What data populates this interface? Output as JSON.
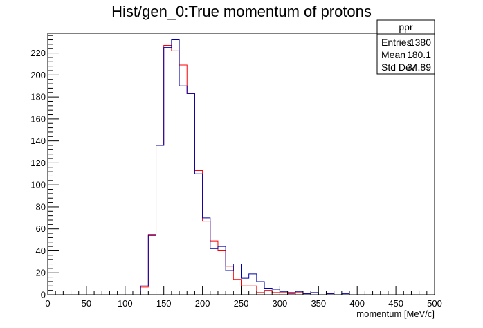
{
  "chart_data": {
    "type": "histogram",
    "title": "Hist/gen_0:True momentum of protons",
    "xlabel": "momentum [MeV/c]",
    "ylabel": "",
    "xlim": [
      0,
      500
    ],
    "ylim": [
      0,
      238
    ],
    "grid": false,
    "bin_width": 10,
    "x_ticks": [
      "0",
      "50",
      "100",
      "150",
      "200",
      "250",
      "300",
      "350",
      "400",
      "450",
      "500"
    ],
    "y_ticks": [
      "0",
      "20",
      "40",
      "60",
      "80",
      "100",
      "120",
      "140",
      "160",
      "180",
      "200",
      "220"
    ],
    "series": [
      {
        "color": "#ff0000",
        "values": [
          0,
          0,
          0,
          0,
          0,
          0,
          0,
          0,
          0,
          0,
          0,
          0,
          7,
          55,
          136,
          227,
          222,
          209,
          183,
          113,
          67,
          49,
          40,
          26,
          14,
          8,
          8,
          2,
          4,
          2,
          2,
          1,
          2,
          1,
          0,
          0,
          1,
          0,
          0,
          0,
          0,
          0,
          0,
          0,
          0,
          0,
          0,
          0,
          0,
          0
        ]
      },
      {
        "color": "#0000aa",
        "values": [
          0,
          0,
          0,
          0,
          0,
          0,
          0,
          0,
          0,
          0,
          0,
          0,
          8,
          54,
          136,
          225,
          232,
          190,
          183,
          110,
          70,
          42,
          44,
          22,
          28,
          15,
          19,
          12,
          6,
          5,
          3,
          2,
          3,
          1,
          2,
          0,
          1,
          0,
          1,
          0,
          0,
          0,
          0,
          0,
          0,
          0,
          0,
          0,
          0,
          0
        ]
      }
    ],
    "stats_box": {
      "name": "ppr",
      "rows": [
        {
          "label": "Entries",
          "value": "1380"
        },
        {
          "label": "Mean",
          "value": "180.1"
        },
        {
          "label": "Std Dev",
          "value": "34.89"
        }
      ]
    }
  }
}
